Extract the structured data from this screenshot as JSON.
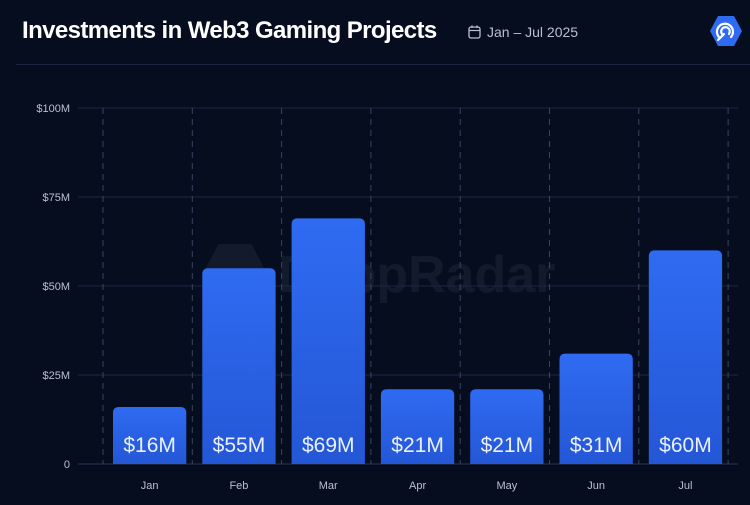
{
  "header": {
    "title": "Investments in Web3 Gaming Projects",
    "date_range": "Jan – Jul 2025",
    "calendar_icon": "calendar-icon",
    "logo_icon": "dappradar-logo-icon"
  },
  "watermark": "DappRadar",
  "colors": {
    "background": "#050d1f",
    "bar_top": "#2f6bf2",
    "bar_bottom": "#2457d6"
  },
  "chart_data": {
    "type": "bar",
    "categories": [
      "Jan",
      "Feb",
      "Mar",
      "Apr",
      "May",
      "Jun",
      "Jul"
    ],
    "values": [
      16,
      55,
      69,
      21,
      21,
      31,
      60
    ],
    "data_labels": [
      "$16M",
      "$55M",
      "$69M",
      "$21M",
      "$21M",
      "$31M",
      "$60M"
    ],
    "unit": "USD millions",
    "ylim": [
      0,
      100
    ],
    "yticks": [
      0,
      25,
      50,
      75,
      100
    ],
    "ytick_labels": [
      "0",
      "$25M",
      "$50M",
      "$75M",
      "$100M"
    ],
    "grid": true,
    "legend": "none"
  }
}
